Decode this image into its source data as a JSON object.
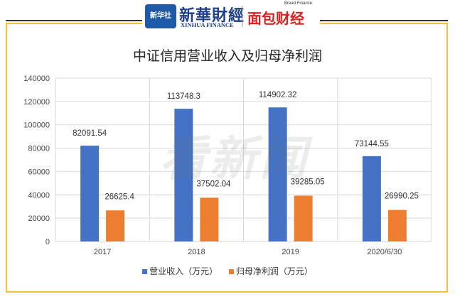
{
  "header": {
    "logo_left_mark": "新华社",
    "logo_left_title": "新華財經",
    "logo_left_sub": "XINHUA FINANCE",
    "logo_right_title": "面包财经",
    "logo_right_sub": "Bread Finance"
  },
  "watermark": "看新闻",
  "colors": {
    "series1": "#4472c4",
    "series2": "#ed7d31",
    "border": "#f0c23a"
  },
  "chart_data": {
    "type": "bar",
    "title": "中证信用营业收入及归母净利润",
    "categories": [
      "2017",
      "2018",
      "2019",
      "2020/6/30"
    ],
    "series": [
      {
        "name": "营业收入（万元）",
        "values": [
          82091.54,
          113748.3,
          114902.32,
          73144.55
        ],
        "labels": [
          "82091.54",
          "113748.3",
          "114902.32",
          "73144.55"
        ]
      },
      {
        "name": "归母净利润（万元）",
        "values": [
          26625.4,
          37502.04,
          39285.05,
          26990.25
        ],
        "labels": [
          "26625.4",
          "37502.04",
          "39285.05",
          "26990.25"
        ]
      }
    ],
    "ylim": [
      0,
      140000
    ],
    "yticks": [
      "0",
      "20000",
      "40000",
      "60000",
      "80000",
      "100000",
      "120000",
      "140000"
    ],
    "grid": true,
    "legend": "bottom"
  }
}
